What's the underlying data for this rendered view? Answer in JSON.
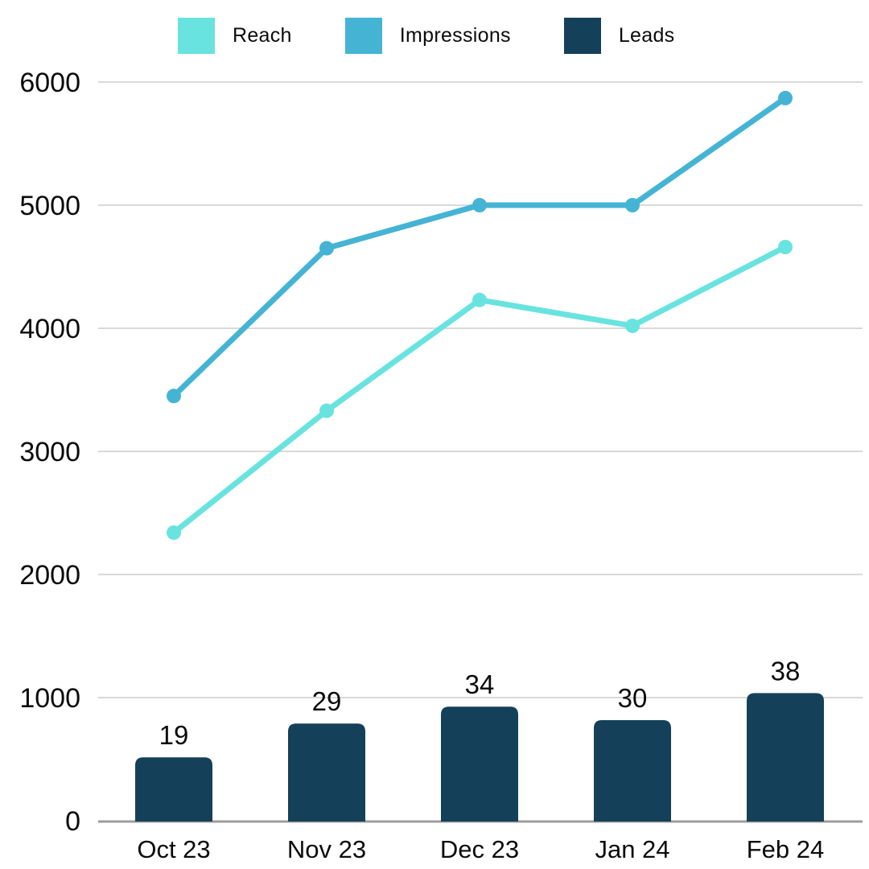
{
  "chart_data": {
    "type": "combo",
    "categories": [
      "Oct 23",
      "Nov 23",
      "Dec 23",
      "Jan 24",
      "Feb 24"
    ],
    "series": [
      {
        "name": "Reach",
        "type": "line",
        "color": "#69E3DF",
        "values": [
          2340,
          3330,
          4230,
          4020,
          4660
        ]
      },
      {
        "name": "Impressions",
        "type": "line",
        "color": "#45B4D4",
        "values": [
          3450,
          4650,
          5000,
          5000,
          5870
        ]
      },
      {
        "name": "Leads",
        "type": "bar",
        "color": "#15405A",
        "values": [
          19,
          29,
          34,
          30,
          38
        ],
        "data_labels": [
          19,
          29,
          34,
          30,
          38
        ]
      }
    ],
    "y_axis": {
      "ticks": [
        0,
        1000,
        2000,
        3000,
        4000,
        5000,
        6000
      ],
      "tick_labels": [
        "0",
        "1000",
        "2000",
        "3000",
        "4000",
        "5000",
        "6000"
      ],
      "range": [
        0,
        6000
      ]
    },
    "grid": true,
    "legend_position": "top",
    "colors": {
      "gridline": "#d9d9d9",
      "axis_line": "#9c9c9c",
      "text": "#0b0b0b"
    }
  }
}
